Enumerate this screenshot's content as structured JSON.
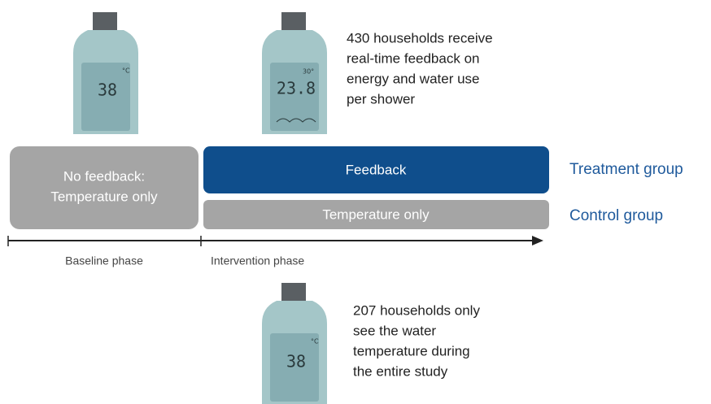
{
  "devices": [
    {
      "display": "38",
      "unit": "°C"
    },
    {
      "display": "23.8",
      "unit": "30°"
    },
    {
      "display": "38",
      "unit": "°C"
    }
  ],
  "treatment_note": [
    "430 households receive",
    "real-time feedback on",
    "energy and water use",
    "per shower"
  ],
  "baseline_box": [
    "No feedback:",
    "Temperature only"
  ],
  "treatment_bar": "Feedback",
  "control_bar": "Temperature only",
  "groups": {
    "treatment": "Treatment group",
    "control": "Control group"
  },
  "phases": {
    "baseline": "Baseline phase",
    "intervention": "Intervention phase"
  },
  "control_note": [
    "207 households only",
    "see the water",
    "temperature during",
    "the entire study"
  ]
}
